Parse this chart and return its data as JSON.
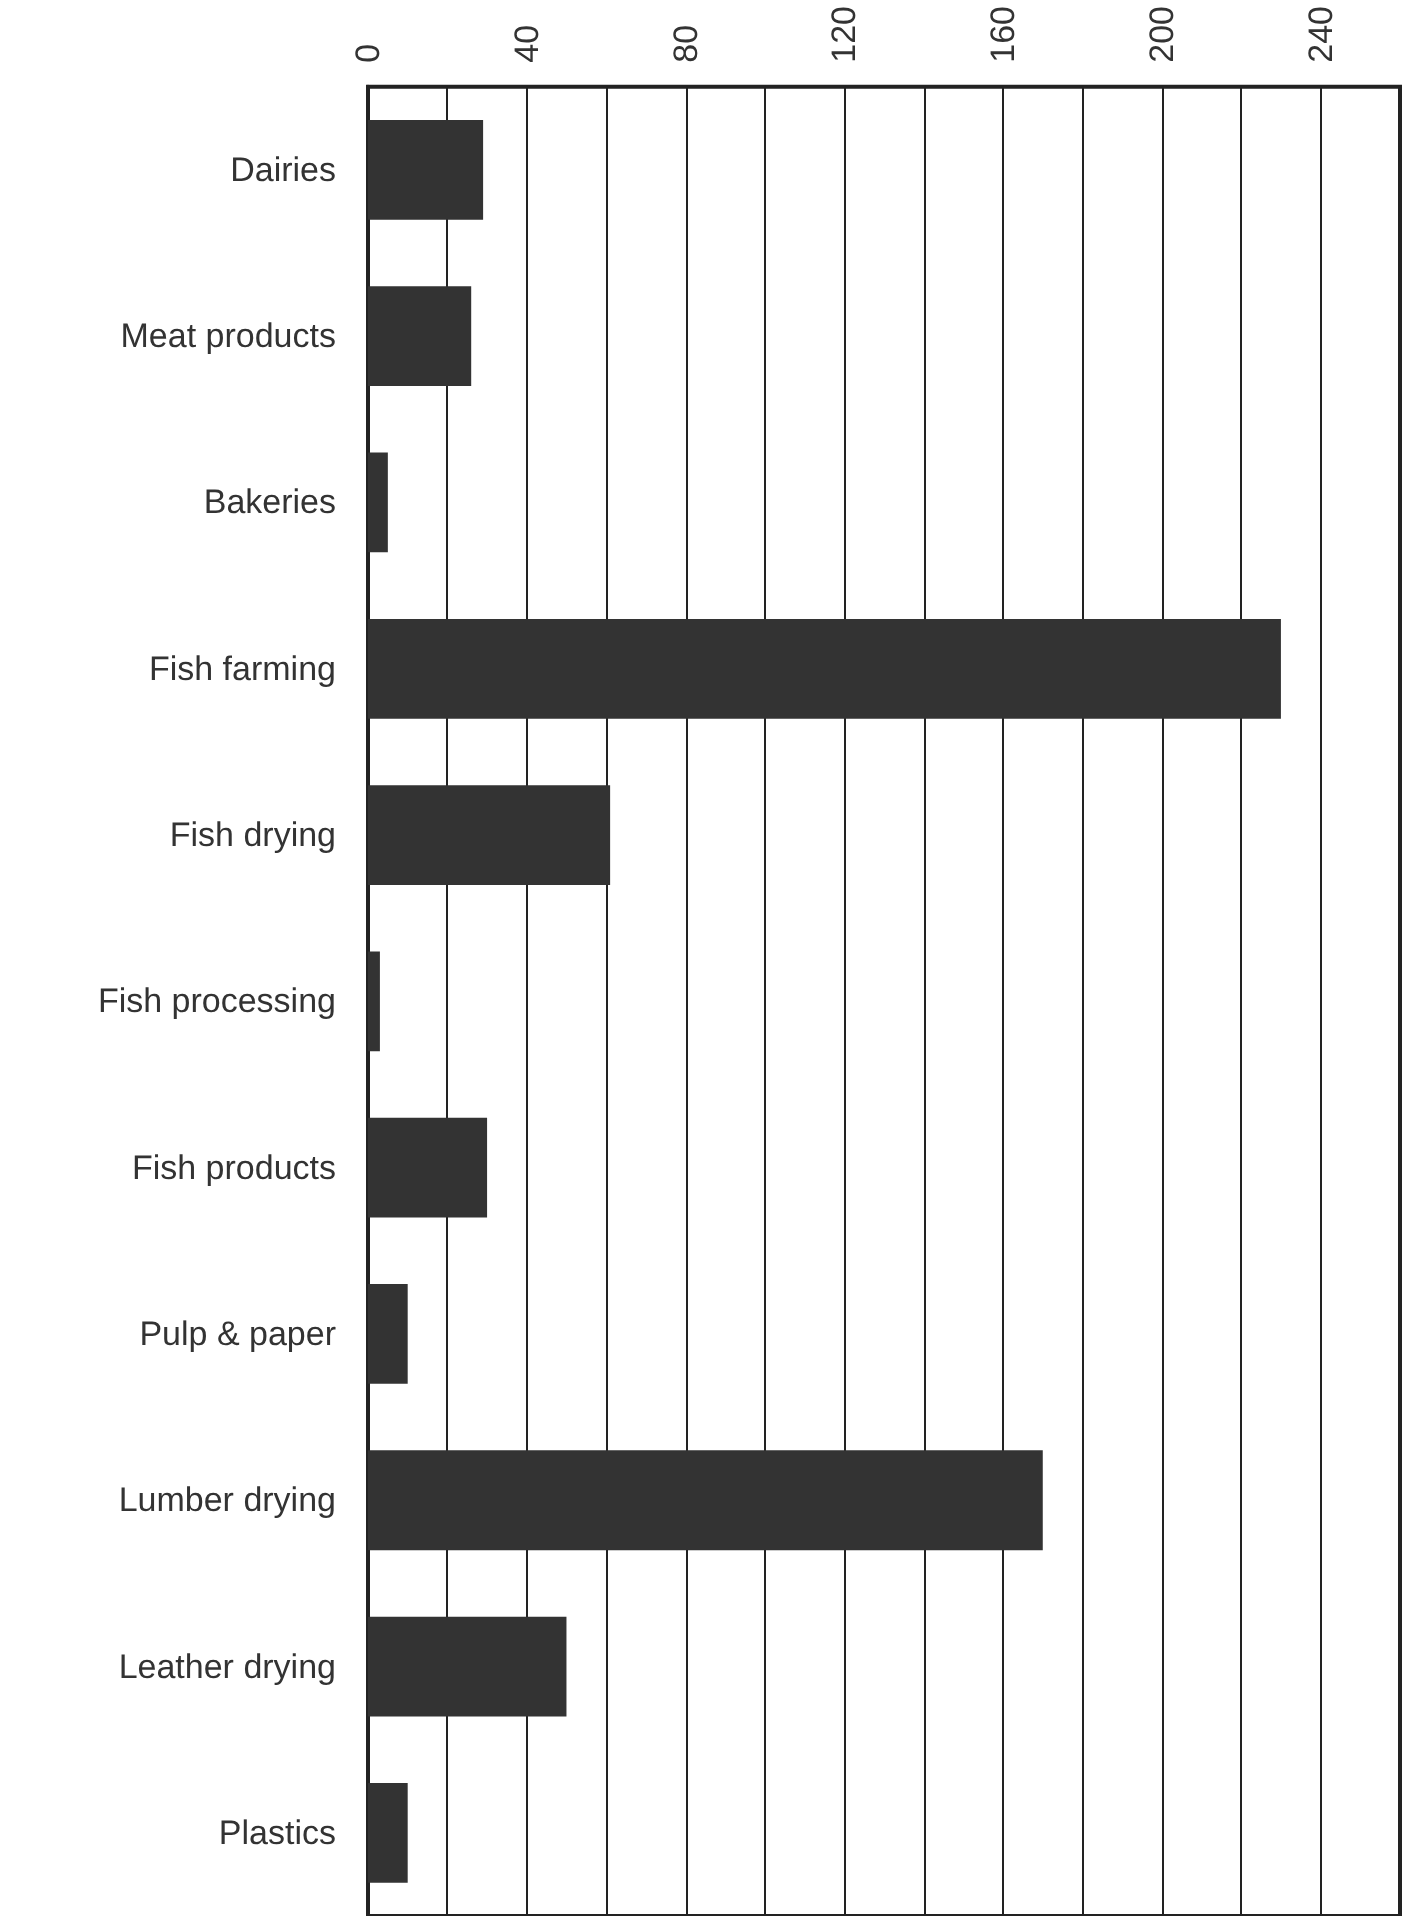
{
  "chart_data": {
    "type": "bar",
    "orientation": "horizontal",
    "categories": [
      "Dairies",
      "Meat products",
      "Bakeries",
      "Fish farming",
      "Fish drying",
      "Fish processing",
      "Fish products",
      "Pulp & paper",
      "Lumber drying",
      "Leather drying",
      "Plastics"
    ],
    "values": [
      29,
      26,
      5,
      230,
      61,
      3,
      30,
      10,
      170,
      50,
      10
    ],
    "color": "#333333",
    "xlim": [
      0,
      260
    ],
    "xticks": [
      0,
      {
        "value": 20,
        "label": null
      },
      40,
      {
        "value": 60,
        "label": null
      },
      80,
      {
        "value": 100,
        "label": null
      },
      120,
      {
        "value": 140,
        "label": null
      },
      160,
      {
        "value": 180,
        "label": null
      },
      200,
      {
        "value": 220,
        "label": null
      },
      240
    ],
    "grid": "x"
  }
}
